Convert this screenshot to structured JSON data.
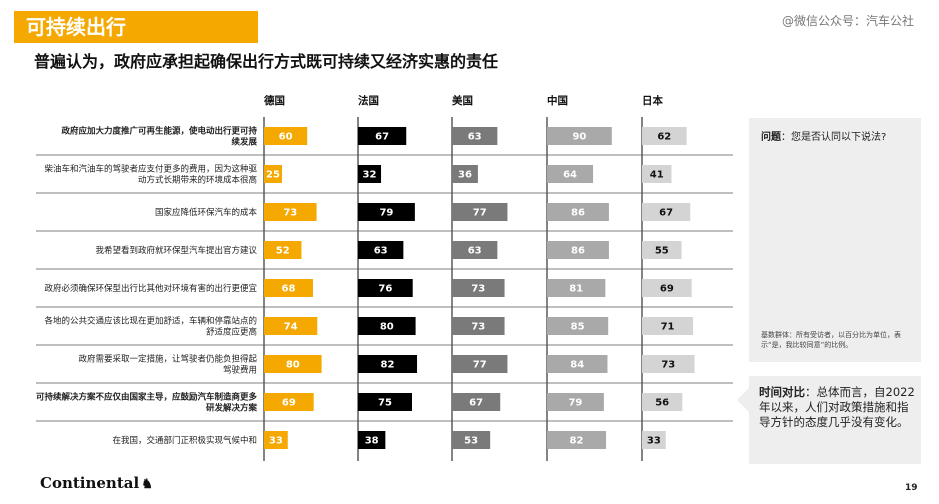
{
  "header": {
    "section_tag": "可持续出行",
    "watermark": "@微信公众号：汽车公社",
    "subtitle": "普遍认为，政府应承担起确保出行方式既可持续又经济实惠的责任"
  },
  "chart_data": {
    "type": "bar",
    "orientation": "horizontal",
    "value_max": 100,
    "series": [
      {
        "name": "德国",
        "color": "#f5a800",
        "label_color": "#ffffff",
        "values": [
          60,
          25,
          73,
          52,
          68,
          74,
          80,
          69,
          33
        ]
      },
      {
        "name": "法国",
        "color": "#000000",
        "label_color": "#ffffff",
        "values": [
          67,
          32,
          79,
          63,
          76,
          80,
          82,
          75,
          38
        ]
      },
      {
        "name": "美国",
        "color": "#7a7a7a",
        "label_color": "#ffffff",
        "values": [
          63,
          36,
          77,
          63,
          73,
          73,
          77,
          67,
          53
        ]
      },
      {
        "name": "中国",
        "color": "#a9a9a9",
        "label_color": "#ffffff",
        "values": [
          90,
          64,
          86,
          86,
          81,
          85,
          84,
          79,
          82
        ]
      },
      {
        "name": "日本",
        "color": "#d4d4d4",
        "label_color": "#111111",
        "values": [
          62,
          41,
          67,
          55,
          69,
          71,
          73,
          56,
          33
        ]
      }
    ],
    "categories": [
      {
        "lines": [
          "政府应加大力度推广可再生能源，使电动出行更可持",
          "续发展"
        ],
        "bold": true
      },
      {
        "lines": [
          "柴油车和汽油车的驾驶者应支付更多的费用，因为这种驱",
          "动方式长期带来的环境成本很高"
        ],
        "bold": false
      },
      {
        "lines": [
          "国家应降低环保汽车的成本"
        ],
        "bold": false
      },
      {
        "lines": [
          "我希望看到政府就环保型汽车提出官方建议"
        ],
        "bold": false
      },
      {
        "lines": [
          "政府必须确保环保型出行比其他对环境有害的出行更便宜"
        ],
        "bold": false
      },
      {
        "lines": [
          "各地的公共交通应该比现在更加舒适，车辆和停靠站点的",
          "舒适度应更高"
        ],
        "bold": false
      },
      {
        "lines": [
          "政府需要采取一定措施，让驾驶者仍能负担得起",
          "驾驶费用"
        ],
        "bold": false
      },
      {
        "lines": [
          "可持续解决方案不应仅由国家主导，应鼓励汽车制造商更多",
          "研发解决方案"
        ],
        "bold": true
      },
      {
        "lines": [
          "在我国，交通部门正积极实现气候中和"
        ],
        "bold": false
      }
    ]
  },
  "panel_question": {
    "label": "问题",
    "text": "：您是否认同以下说法?",
    "base_note": "基数群体：所有受访者，以百分比为单位，表示“是，我比较同意”的比例。"
  },
  "panel_time": {
    "label": "时间对比",
    "text": "：总体而言，自2022 年以来，人们对政策措施和指导方针的态度几乎没有变化。"
  },
  "footer": {
    "logo": "Continental",
    "logo_icon": "horse-icon",
    "page_number": "19"
  }
}
